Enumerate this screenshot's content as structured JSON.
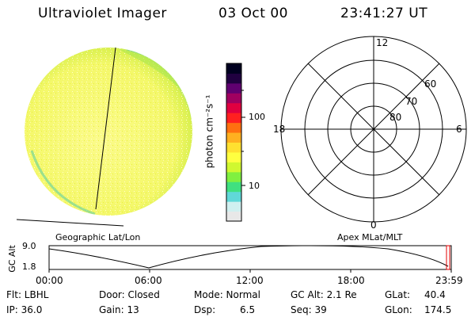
{
  "header": {
    "instrument": "Ultraviolet Imager",
    "date": "03 Oct 00",
    "time": "23:41:27 UT"
  },
  "colorbar": {
    "unit_label": "photon cm⁻²s⁻¹",
    "ticks": [
      "100",
      "10"
    ],
    "scale": "log",
    "colors": [
      "#e8e8e8",
      "#d0f0f0",
      "#60d8d8",
      "#40e080",
      "#80f040",
      "#d0f830",
      "#ffff40",
      "#ffe030",
      "#ffb020",
      "#ff7010",
      "#ff2020",
      "#e00040",
      "#a00060",
      "#600070",
      "#200040",
      "#000020"
    ]
  },
  "polar": {
    "mlt_labels": {
      "top": "12",
      "left": "18",
      "right": "6",
      "bottom": "0"
    },
    "lat_labels": [
      "60",
      "70",
      "80"
    ]
  },
  "projection_labels": {
    "left": "Geographic Lat/Lon",
    "right": "Apex MLat/MLT"
  },
  "altitude_plot": {
    "ylabel": "GC Alt",
    "yticks": [
      "9.0",
      "1.8"
    ],
    "xticks": [
      "00:00",
      "06:00",
      "12:00",
      "18:00",
      "23:59"
    ]
  },
  "status": {
    "filter": "Flt: LBHL",
    "ip": "IP: 36.0",
    "door": "Door: Closed",
    "gain": "Gain: 13",
    "mode": "Mode: Normal",
    "dsp_label": "Dsp:",
    "dsp_value": "6.5",
    "gc_alt": "GC Alt: 2.1 Re",
    "seq": "Seq: 39",
    "glat_label": "GLat:",
    "glat_value": "40.4",
    "glon_label": "GLon:",
    "glon_value": "174.5"
  }
}
